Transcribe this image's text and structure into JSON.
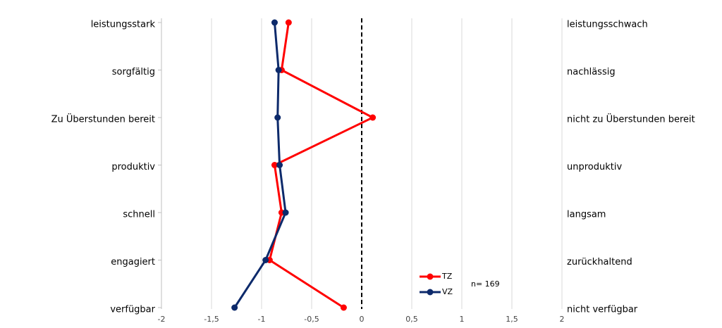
{
  "chart_data": {
    "type": "line",
    "orientation": "horizontal",
    "categories": [
      "leistungsstark",
      "sorgfältig",
      "Zu Überstunden bereit",
      "produktiv",
      "schnell",
      "engagiert",
      "verfügbar"
    ],
    "right_labels": [
      "leistungsschwach",
      "nachlässig",
      "nicht zu Überstunden bereit",
      "unproduktiv",
      "langsam",
      "zurückhaltend",
      "nicht verfügbar"
    ],
    "series": [
      {
        "name": "TZ",
        "color": "#ff0000",
        "values": [
          -0.73,
          -0.8,
          0.11,
          -0.87,
          -0.8,
          -0.92,
          -0.18
        ]
      },
      {
        "name": "VZ",
        "color": "#0d2a6b",
        "values": [
          -0.87,
          -0.83,
          -0.84,
          -0.82,
          -0.76,
          -0.96,
          -1.27
        ]
      }
    ],
    "xlim": [
      -2,
      2
    ],
    "xticks": [
      -2,
      {
        "value": -1.5,
        "label": "-1,5"
      },
      -1,
      {
        "value": -0.5,
        "label": "-0,5"
      },
      0,
      {
        "value": 0.5,
        "label": "0,5"
      },
      1,
      {
        "value": 1.5,
        "label": "1,5"
      },
      2
    ],
    "reference_line": 0,
    "grid": true,
    "annotation": "n= 169"
  }
}
